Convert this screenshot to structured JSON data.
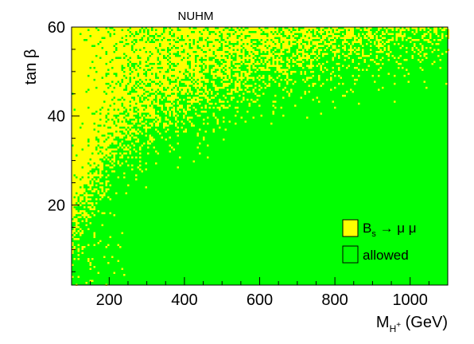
{
  "chart_data": {
    "type": "scatter",
    "title": "NUHM",
    "xlabel": {
      "main": "M",
      "sub": "H",
      "sup": "+",
      "tail": " (GeV)"
    },
    "ylabel": {
      "main": "tan ",
      "greek": "β"
    },
    "xlim": [
      100,
      1100
    ],
    "ylim": [
      2,
      60
    ],
    "xticks": [
      {
        "value": 200,
        "label": "200"
      },
      {
        "value": 400,
        "label": "400"
      },
      {
        "value": 600,
        "label": "600"
      },
      {
        "value": 800,
        "label": "800"
      },
      {
        "value": 1000,
        "label": "1000"
      }
    ],
    "yticks": [
      {
        "value": 20,
        "label": "20"
      },
      {
        "value": 40,
        "label": "40"
      },
      {
        "value": 60,
        "label": "60"
      }
    ],
    "grid": false,
    "legend_position": "bottom-right",
    "series": [
      {
        "name": "B_s → μ μ",
        "label": {
          "main": "B",
          "sub": "s",
          "rest": " → μ μ"
        },
        "color": "#ffff00",
        "region": "excluded (large tan β, small M_H+)"
      },
      {
        "name": "allowed",
        "label": {
          "main": "allowed"
        },
        "color": "#00ff00",
        "region": "allowed"
      }
    ],
    "approximate_exclusion_boundary": [
      {
        "x": 100,
        "tanb": 13
      },
      {
        "x": 150,
        "tanb": 22
      },
      {
        "x": 200,
        "tanb": 28
      },
      {
        "x": 300,
        "tanb": 33
      },
      {
        "x": 400,
        "tanb": 38
      },
      {
        "x": 500,
        "tanb": 42
      },
      {
        "x": 600,
        "tanb": 45
      },
      {
        "x": 700,
        "tanb": 47
      },
      {
        "x": 800,
        "tanb": 50
      },
      {
        "x": 900,
        "tanb": 52
      },
      {
        "x": 1000,
        "tanb": 54
      },
      {
        "x": 1100,
        "tanb": 56
      }
    ]
  }
}
